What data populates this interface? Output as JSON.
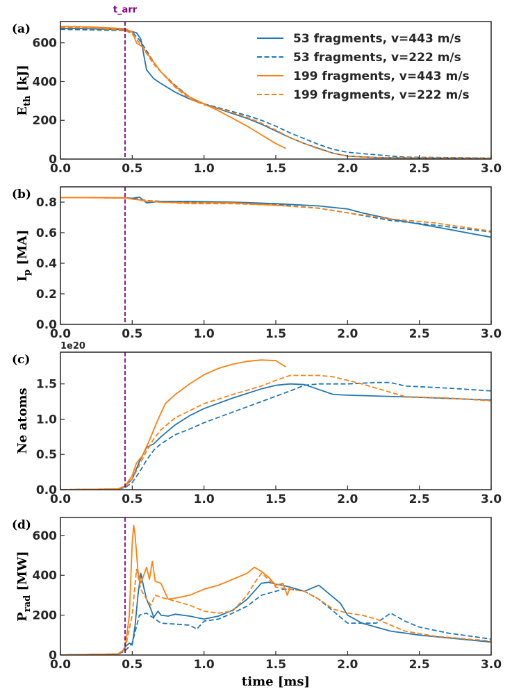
{
  "figure": {
    "x_label": "time [ms]",
    "annotation": "t_arr",
    "annotation_color": "#800080"
  },
  "legend": [
    {
      "label": "53 fragments, v=443 m/s",
      "color": "#1f77b4",
      "dash": false
    },
    {
      "label": "53 fragments, v=222 m/s",
      "color": "#1f77b4",
      "dash": true
    },
    {
      "label": "199 fragments, v=443 m/s",
      "color": "#ff7f0e",
      "dash": false
    },
    {
      "label": "199 fragments, v=222 m/s",
      "color": "#ff7f0e",
      "dash": true
    }
  ],
  "chart_data": [
    {
      "type": "line",
      "panel": "(a)",
      "ylabel_main": "E",
      "ylabel_sub": "th",
      "ylabel_unit": " [kJ]",
      "xlim": [
        0,
        3
      ],
      "ylim": [
        0,
        710
      ],
      "xticks": [
        0,
        0.5,
        1,
        1.5,
        2,
        2.5,
        3
      ],
      "xtick_labels": [
        "0.0",
        "0.5",
        "1.0",
        "1.5",
        "2.0",
        "2.5",
        "3.0"
      ],
      "yticks": [
        0,
        200,
        400,
        600
      ],
      "ytick_labels": [
        "0",
        "200",
        "400",
        "600"
      ],
      "vline_x": 0.45,
      "series": [
        {
          "name": "53 fragments, v=443 m/s",
          "x": [
            0,
            0.2,
            0.45,
            0.5,
            0.53,
            0.56,
            0.6,
            0.65,
            0.7,
            0.8,
            0.9,
            1.0,
            1.1,
            1.2,
            1.3,
            1.4,
            1.5,
            1.6,
            1.7,
            1.8,
            1.9,
            2.0,
            2.2,
            2.5,
            3.0
          ],
          "y": [
            675,
            673,
            668,
            658,
            652,
            620,
            460,
            415,
            390,
            345,
            310,
            285,
            260,
            235,
            210,
            180,
            145,
            110,
            80,
            55,
            30,
            15,
            8,
            5,
            4
          ]
        },
        {
          "name": "53 fragments, v=222 m/s",
          "x": [
            0,
            0.2,
            0.45,
            0.5,
            0.55,
            0.6,
            0.65,
            0.7,
            0.8,
            0.9,
            1.0,
            1.1,
            1.2,
            1.3,
            1.4,
            1.5,
            1.6,
            1.7,
            1.8,
            1.9,
            2.0,
            2.2,
            2.4,
            3.0
          ],
          "y": [
            670,
            667,
            663,
            655,
            615,
            560,
            500,
            450,
            380,
            320,
            285,
            265,
            245,
            225,
            200,
            170,
            135,
            105,
            75,
            50,
            35,
            22,
            10,
            5
          ]
        },
        {
          "name": "199 fragments, v=443 m/s",
          "x": [
            0,
            0.2,
            0.45,
            0.5,
            0.53,
            0.57,
            0.6,
            0.65,
            0.7,
            0.8,
            0.9,
            1.0,
            1.1,
            1.2,
            1.3,
            1.4,
            1.5,
            1.57
          ],
          "y": [
            685,
            682,
            673,
            655,
            600,
            580,
            550,
            500,
            450,
            375,
            320,
            285,
            250,
            210,
            170,
            125,
            80,
            55
          ]
        },
        {
          "name": "199 fragments, v=222 m/s",
          "x": [
            0,
            0.2,
            0.45,
            0.5,
            0.55,
            0.6,
            0.65,
            0.7,
            0.8,
            0.9,
            1.0,
            1.1,
            1.2,
            1.3,
            1.4,
            1.5,
            1.6,
            1.7,
            1.8,
            1.9,
            2.0,
            2.2,
            3.0
          ],
          "y": [
            680,
            677,
            665,
            645,
            600,
            545,
            490,
            450,
            370,
            310,
            280,
            260,
            240,
            215,
            185,
            150,
            110,
            80,
            52,
            30,
            15,
            8,
            4
          ]
        }
      ]
    },
    {
      "type": "line",
      "panel": "(b)",
      "ylabel_main": "I",
      "ylabel_sub": "p",
      "ylabel_unit": " [MA]",
      "xlim": [
        0,
        3
      ],
      "ylim": [
        0,
        0.9
      ],
      "xticks": [
        0,
        0.5,
        1,
        1.5,
        2,
        2.5,
        3
      ],
      "xtick_labels": [
        "0.0",
        "0.5",
        "1.0",
        "1.5",
        "2.0",
        "2.5",
        "3.0"
      ],
      "yticks": [
        0,
        0.2,
        0.4,
        0.6,
        0.8
      ],
      "ytick_labels": [
        "0.0",
        "0.2",
        "0.4",
        "0.6",
        "0.8"
      ],
      "vline_x": 0.45,
      "series": [
        {
          "name": "53 fragments, v=443 m/s",
          "x": [
            0,
            0.45,
            0.5,
            0.55,
            0.58,
            0.6,
            0.65,
            0.7,
            0.9,
            1.2,
            1.5,
            1.8,
            2.0,
            2.1,
            2.3,
            2.6,
            3.0
          ],
          "y": [
            0.83,
            0.828,
            0.825,
            0.833,
            0.81,
            0.795,
            0.8,
            0.805,
            0.805,
            0.8,
            0.79,
            0.775,
            0.755,
            0.73,
            0.69,
            0.64,
            0.57
          ]
        },
        {
          "name": "53 fragments, v=222 m/s",
          "x": [
            0,
            0.45,
            0.5,
            0.55,
            0.6,
            0.7,
            0.9,
            1.2,
            1.5,
            1.8,
            2.0,
            2.3,
            2.6,
            3.0
          ],
          "y": [
            0.83,
            0.828,
            0.825,
            0.82,
            0.81,
            0.805,
            0.8,
            0.795,
            0.785,
            0.76,
            0.73,
            0.68,
            0.65,
            0.605
          ]
        },
        {
          "name": "199 fragments, v=443 m/s",
          "x": [
            0,
            0.45,
            0.5,
            0.55,
            0.6,
            0.7,
            0.9,
            1.2,
            1.4,
            1.57
          ],
          "y": [
            0.83,
            0.828,
            0.82,
            0.815,
            0.805,
            0.8,
            0.795,
            0.795,
            0.785,
            0.775
          ]
        },
        {
          "name": "199 fragments, v=222 m/s",
          "x": [
            0,
            0.45,
            0.5,
            0.55,
            0.6,
            0.7,
            0.9,
            1.2,
            1.5,
            1.8,
            2.0,
            2.3,
            2.6,
            3.0
          ],
          "y": [
            0.83,
            0.828,
            0.82,
            0.815,
            0.81,
            0.8,
            0.79,
            0.79,
            0.78,
            0.76,
            0.73,
            0.69,
            0.665,
            0.61
          ]
        }
      ]
    },
    {
      "type": "line",
      "panel": "(c)",
      "ylabel_main": "Ne atoms",
      "ylabel_sub": "",
      "ylabel_unit": "",
      "offset_label": "1e20",
      "xlim": [
        0,
        3
      ],
      "ylim": [
        0,
        1.95
      ],
      "xticks": [
        0,
        0.5,
        1,
        1.5,
        2,
        2.5,
        3
      ],
      "xtick_labels": [
        "0.0",
        "0.5",
        "1.0",
        "1.5",
        "2.0",
        "2.5",
        "3.0"
      ],
      "yticks": [
        0,
        0.5,
        1,
        1.5
      ],
      "ytick_labels": [
        "0.0",
        "0.5",
        "1.0",
        "1.5"
      ],
      "vline_x": 0.45,
      "series": [
        {
          "name": "53 fragments, v=443 m/s",
          "x": [
            0,
            0.4,
            0.45,
            0.5,
            0.55,
            0.6,
            0.65,
            0.7,
            0.8,
            0.9,
            1.0,
            1.2,
            1.4,
            1.5,
            1.6,
            1.7,
            1.8,
            1.9,
            2.0,
            2.5,
            3.0
          ],
          "y": [
            0,
            0.01,
            0.05,
            0.15,
            0.4,
            0.6,
            0.65,
            0.75,
            0.92,
            1.05,
            1.15,
            1.3,
            1.43,
            1.48,
            1.5,
            1.49,
            1.42,
            1.35,
            1.34,
            1.31,
            1.27
          ]
        },
        {
          "name": "53 fragments, v=222 m/s",
          "x": [
            0,
            0.4,
            0.45,
            0.5,
            0.55,
            0.6,
            0.65,
            0.7,
            0.8,
            0.9,
            1.0,
            1.2,
            1.4,
            1.6,
            1.7,
            1.8,
            2.0,
            2.2,
            2.3,
            2.4,
            2.7,
            3.0
          ],
          "y": [
            0,
            0.01,
            0.03,
            0.1,
            0.25,
            0.42,
            0.56,
            0.65,
            0.78,
            0.86,
            0.95,
            1.1,
            1.25,
            1.4,
            1.48,
            1.5,
            1.5,
            1.52,
            1.52,
            1.47,
            1.44,
            1.4
          ]
        },
        {
          "name": "199 fragments, v=443 m/s",
          "x": [
            0,
            0.4,
            0.45,
            0.5,
            0.53,
            0.57,
            0.62,
            0.67,
            0.73,
            0.8,
            0.9,
            1.0,
            1.1,
            1.2,
            1.3,
            1.4,
            1.5,
            1.57
          ],
          "y": [
            0,
            0.01,
            0.05,
            0.2,
            0.38,
            0.48,
            0.7,
            0.95,
            1.22,
            1.35,
            1.5,
            1.63,
            1.72,
            1.78,
            1.82,
            1.84,
            1.83,
            1.74
          ]
        },
        {
          "name": "199 fragments, v=222 m/s",
          "x": [
            0,
            0.4,
            0.45,
            0.5,
            0.55,
            0.6,
            0.65,
            0.7,
            0.8,
            0.9,
            1.0,
            1.2,
            1.4,
            1.5,
            1.6,
            1.8,
            1.9,
            2.1,
            2.4,
            2.7,
            3.0
          ],
          "y": [
            0,
            0.01,
            0.05,
            0.15,
            0.35,
            0.55,
            0.72,
            0.85,
            1.02,
            1.12,
            1.22,
            1.35,
            1.47,
            1.55,
            1.62,
            1.62,
            1.6,
            1.5,
            1.32,
            1.3,
            1.26
          ]
        }
      ]
    },
    {
      "type": "line",
      "panel": "(d)",
      "ylabel_main": "P",
      "ylabel_sub": "rad",
      "ylabel_unit": " [MW]",
      "xlim": [
        0,
        3
      ],
      "ylim": [
        0,
        690
      ],
      "xticks": [
        0,
        0.5,
        1,
        1.5,
        2,
        2.5,
        3
      ],
      "xtick_labels": [
        "0.0",
        "0.5",
        "1.0",
        "1.5",
        "2.0",
        "2.5",
        "3.0"
      ],
      "yticks": [
        0,
        200,
        400,
        600
      ],
      "ytick_labels": [
        "0",
        "200",
        "400",
        "600"
      ],
      "vline_x": 0.45,
      "series": [
        {
          "name": "53 fragments, v=443 m/s",
          "x": [
            0,
            0.4,
            0.43,
            0.45,
            0.48,
            0.5,
            0.52,
            0.54,
            0.56,
            0.58,
            0.6,
            0.63,
            0.65,
            0.68,
            0.7,
            0.75,
            0.8,
            0.9,
            1.0,
            1.1,
            1.2,
            1.3,
            1.35,
            1.4,
            1.45,
            1.5,
            1.55,
            1.6,
            1.7,
            1.8,
            1.85,
            1.9,
            1.95,
            2.0,
            2.1,
            2.3,
            2.5,
            3.0
          ],
          "y": [
            0,
            5,
            15,
            40,
            60,
            50,
            150,
            300,
            410,
            340,
            280,
            230,
            190,
            220,
            200,
            195,
            205,
            195,
            180,
            195,
            225,
            280,
            320,
            360,
            365,
            355,
            350,
            340,
            320,
            350,
            320,
            290,
            260,
            200,
            160,
            120,
            100,
            65
          ]
        },
        {
          "name": "53 fragments, v=222 m/s",
          "x": [
            0,
            0.4,
            0.45,
            0.5,
            0.55,
            0.6,
            0.65,
            0.7,
            0.8,
            0.9,
            0.95,
            1.0,
            1.1,
            1.2,
            1.3,
            1.4,
            1.5,
            1.55,
            1.6,
            1.7,
            1.8,
            1.9,
            2.0,
            2.2,
            2.3,
            2.4,
            2.5,
            2.7,
            3.0
          ],
          "y": [
            0,
            5,
            20,
            60,
            200,
            210,
            185,
            160,
            155,
            150,
            130,
            170,
            180,
            210,
            245,
            300,
            320,
            330,
            330,
            320,
            280,
            220,
            160,
            160,
            210,
            170,
            140,
            110,
            80
          ]
        },
        {
          "name": "199 fragments, v=443 m/s",
          "x": [
            0,
            0.4,
            0.45,
            0.48,
            0.5,
            0.51,
            0.52,
            0.54,
            0.56,
            0.58,
            0.6,
            0.62,
            0.64,
            0.66,
            0.7,
            0.75,
            0.8,
            0.9,
            1.0,
            1.1,
            1.2,
            1.3,
            1.35,
            1.4,
            1.45,
            1.5,
            1.55,
            1.58,
            1.6
          ],
          "y": [
            0,
            5,
            30,
            200,
            560,
            650,
            600,
            420,
            360,
            400,
            440,
            380,
            470,
            370,
            360,
            280,
            285,
            300,
            330,
            350,
            380,
            410,
            440,
            420,
            390,
            350,
            360,
            300,
            340
          ]
        },
        {
          "name": "199 fragments, v=222 m/s",
          "x": [
            0,
            0.4,
            0.45,
            0.5,
            0.53,
            0.56,
            0.6,
            0.63,
            0.66,
            0.7,
            0.8,
            0.9,
            1.0,
            1.1,
            1.2,
            1.3,
            1.35,
            1.4,
            1.45,
            1.5,
            1.6,
            1.7,
            1.8,
            1.9,
            2.0,
            2.1,
            2.2,
            2.4,
            2.6,
            3.0
          ],
          "y": [
            0,
            5,
            30,
            200,
            430,
            330,
            280,
            250,
            300,
            290,
            270,
            250,
            220,
            210,
            220,
            300,
            360,
            410,
            380,
            340,
            330,
            320,
            280,
            230,
            210,
            200,
            180,
            120,
            95,
            70
          ]
        }
      ]
    }
  ]
}
